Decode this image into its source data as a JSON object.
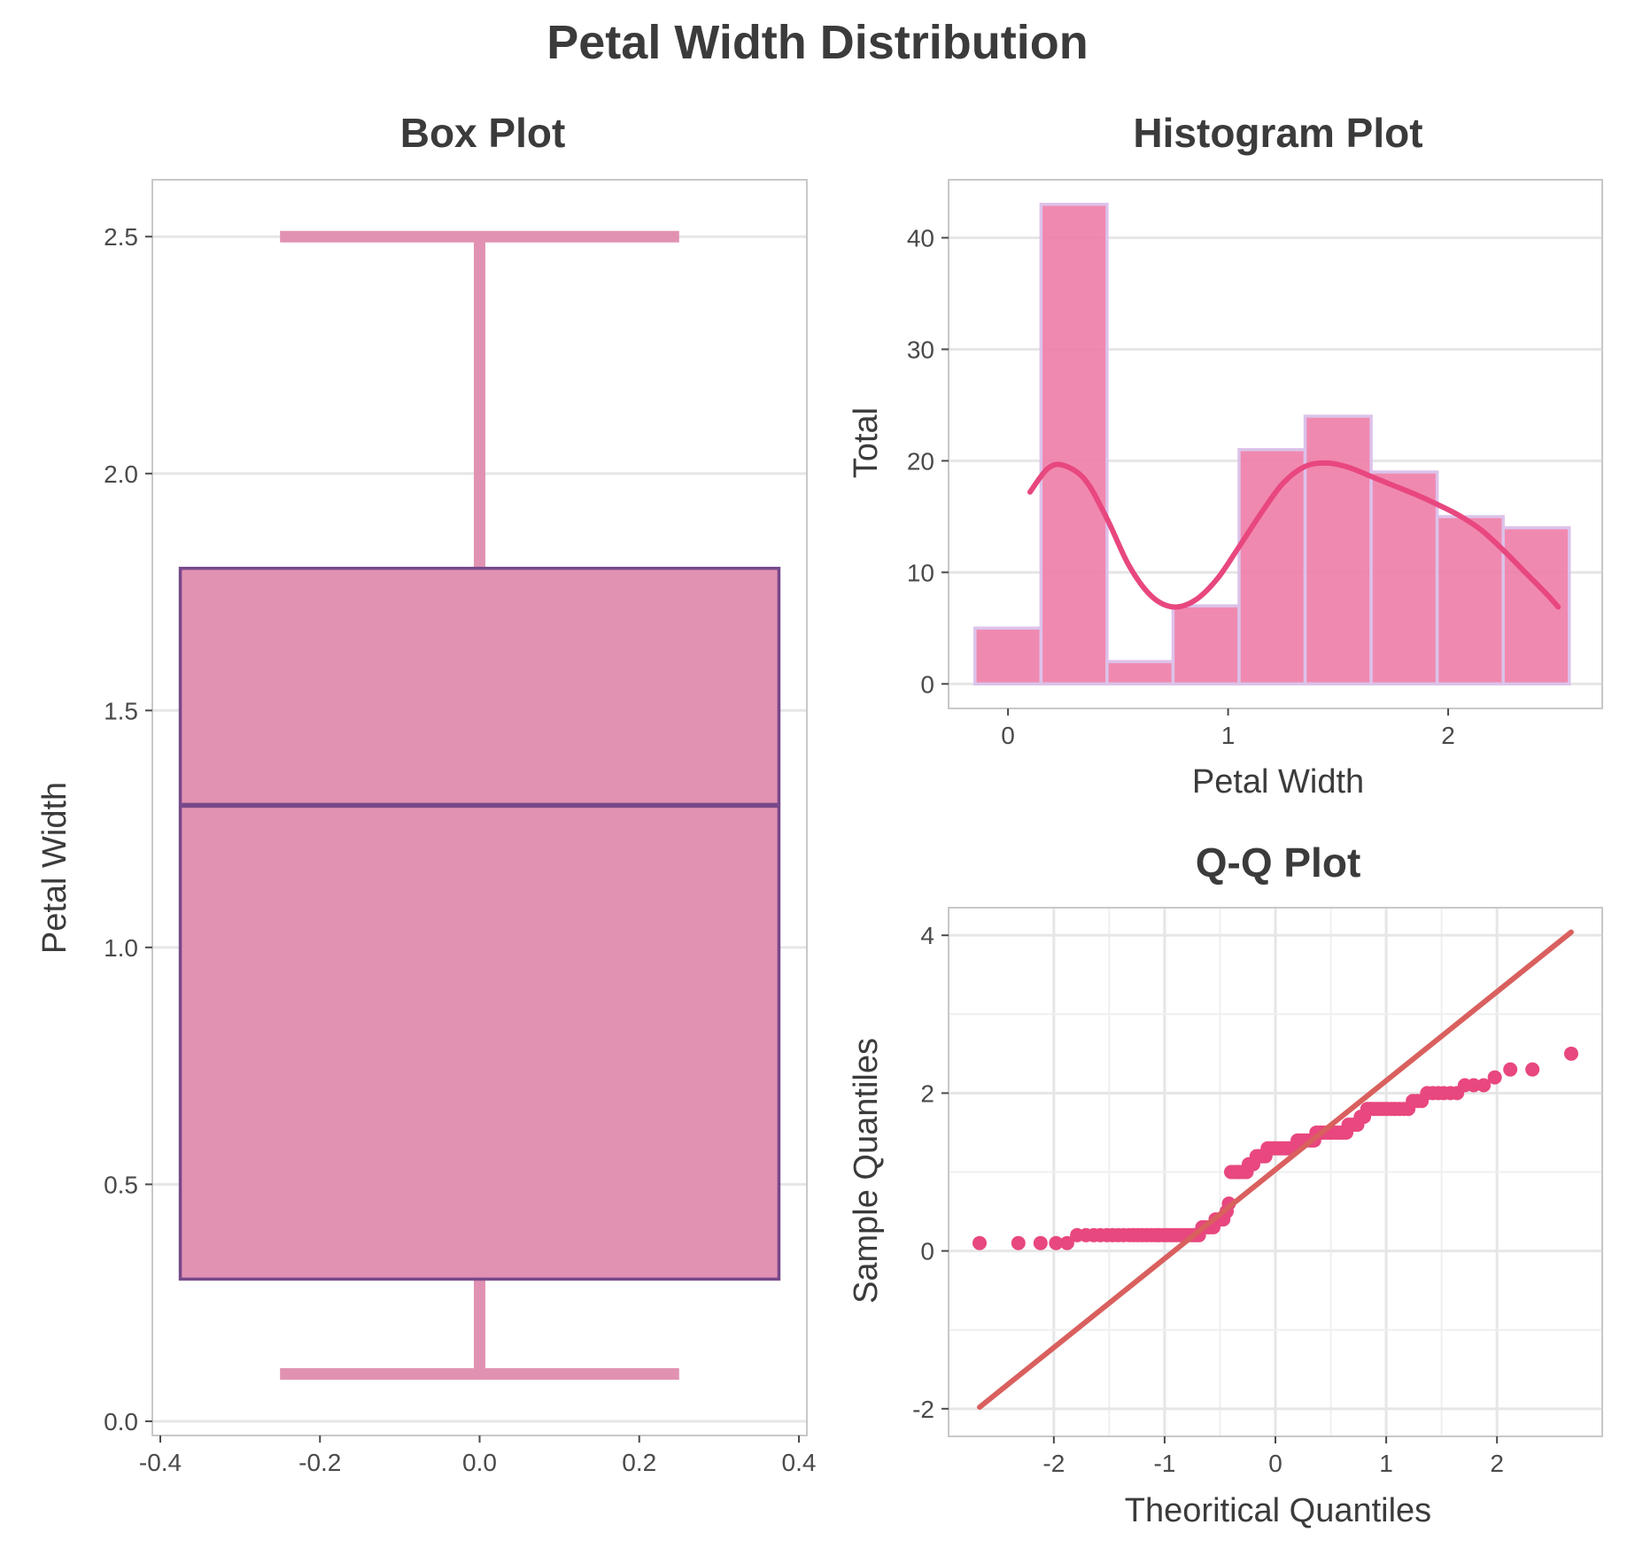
{
  "figure": {
    "title": "Petal Width Distribution"
  },
  "chart_data": [
    {
      "type": "box",
      "title": "Box Plot",
      "xlabel": "",
      "ylabel": "Petal Width",
      "xlim": [
        -0.41,
        0.41
      ],
      "ylim": [
        -0.03,
        2.62
      ],
      "xticks": [
        -0.4,
        -0.2,
        0.0,
        0.2,
        0.4
      ],
      "xtick_labels": [
        "-0.4",
        "-0.2",
        "0.0",
        "0.2",
        "0.4"
      ],
      "yticks": [
        0.0,
        0.5,
        1.0,
        1.5,
        2.0,
        2.5
      ],
      "ytick_labels": [
        "0.0",
        "0.5",
        "1.0",
        "1.5",
        "2.0",
        "2.5"
      ],
      "stats": {
        "min": 0.1,
        "q1": 0.3,
        "median": 1.3,
        "q3": 1.8,
        "max": 2.5
      },
      "box_halfwidth": 0.375,
      "cap_halfwidth": 0.25,
      "fill_color": "#e192b2",
      "edge_color": "#77488a",
      "whisker_color": "#e192b2",
      "grid": true
    },
    {
      "type": "histogram",
      "title": "Histogram Plot",
      "xlabel": "Petal Width",
      "ylabel": "Total",
      "xlim": [
        -0.27,
        2.7
      ],
      "ylim": [
        -2.2,
        45.2
      ],
      "xticks": [
        0,
        1,
        2
      ],
      "xtick_labels": [
        "0",
        "1",
        "2"
      ],
      "yticks": [
        0,
        10,
        20,
        30,
        40
      ],
      "ytick_labels": [
        "0",
        "10",
        "20",
        "30",
        "40"
      ],
      "bins": [
        {
          "x0": -0.15,
          "x1": 0.15,
          "count": 5
        },
        {
          "x0": 0.15,
          "x1": 0.45,
          "count": 43
        },
        {
          "x0": 0.45,
          "x1": 0.75,
          "count": 2
        },
        {
          "x0": 0.75,
          "x1": 1.05,
          "count": 7
        },
        {
          "x0": 1.05,
          "x1": 1.35,
          "count": 21
        },
        {
          "x0": 1.35,
          "x1": 1.65,
          "count": 24
        },
        {
          "x0": 1.65,
          "x1": 1.95,
          "count": 19
        },
        {
          "x0": 1.95,
          "x1": 2.25,
          "count": 15
        },
        {
          "x0": 2.25,
          "x1": 2.55,
          "count": 14
        }
      ],
      "kde": {
        "x": [
          0.1,
          0.18,
          0.25,
          0.35,
          0.45,
          0.55,
          0.65,
          0.75,
          0.85,
          0.95,
          1.05,
          1.15,
          1.25,
          1.35,
          1.45,
          1.55,
          1.65,
          1.75,
          1.85,
          1.95,
          2.05,
          2.15,
          2.25,
          2.35,
          2.45,
          2.5
        ],
        "y": [
          17.2,
          19.3,
          19.6,
          18.3,
          14.8,
          10.6,
          7.9,
          6.9,
          7.5,
          9.4,
          12.3,
          15.3,
          18.0,
          19.5,
          19.8,
          19.4,
          18.6,
          17.8,
          17.0,
          16.1,
          15.1,
          13.8,
          12.0,
          10.0,
          8.0,
          6.9
        ]
      },
      "bar_color": "#ef7fa8",
      "bar_edge_color": "#dcc2ea",
      "kde_color": "#e8477f",
      "grid": true
    },
    {
      "type": "scatter",
      "title": "Q-Q Plot",
      "xlabel": "Theoritical Quantiles",
      "ylabel": "Sample Quantiles",
      "xlim": [
        -2.95,
        2.95
      ],
      "ylim": [
        -2.35,
        4.35
      ],
      "xticks": [
        -2,
        -1,
        0,
        1,
        2
      ],
      "xtick_labels": [
        "-2",
        "-1",
        "0",
        "1",
        "2"
      ],
      "yticks": [
        -2,
        0,
        2,
        4
      ],
      "ytick_labels": [
        "-2",
        "0",
        "2",
        "4"
      ],
      "points": [
        [
          -2.67,
          0.1
        ],
        [
          -2.32,
          0.1
        ],
        [
          -2.12,
          0.1
        ],
        [
          -1.98,
          0.1
        ],
        [
          -1.88,
          0.1
        ],
        [
          -1.79,
          0.2
        ],
        [
          -1.71,
          0.2
        ],
        [
          -1.64,
          0.2
        ],
        [
          -1.58,
          0.2
        ],
        [
          -1.52,
          0.2
        ],
        [
          -1.47,
          0.2
        ],
        [
          -1.42,
          0.2
        ],
        [
          -1.37,
          0.2
        ],
        [
          -1.32,
          0.2
        ],
        [
          -1.28,
          0.2
        ],
        [
          -1.24,
          0.2
        ],
        [
          -1.2,
          0.2
        ],
        [
          -1.16,
          0.2
        ],
        [
          -1.12,
          0.2
        ],
        [
          -1.08,
          0.2
        ],
        [
          -1.05,
          0.2
        ],
        [
          -1.01,
          0.2
        ],
        [
          -0.98,
          0.2
        ],
        [
          -0.95,
          0.2
        ],
        [
          -0.92,
          0.2
        ],
        [
          -0.89,
          0.2
        ],
        [
          -0.86,
          0.2
        ],
        [
          -0.83,
          0.2
        ],
        [
          -0.8,
          0.2
        ],
        [
          -0.77,
          0.2
        ],
        [
          -0.74,
          0.2
        ],
        [
          -0.72,
          0.2
        ],
        [
          -0.69,
          0.2
        ],
        [
          -0.66,
          0.3
        ],
        [
          -0.64,
          0.3
        ],
        [
          -0.61,
          0.3
        ],
        [
          -0.59,
          0.3
        ],
        [
          -0.56,
          0.3
        ],
        [
          -0.54,
          0.4
        ],
        [
          -0.51,
          0.4
        ],
        [
          -0.49,
          0.4
        ],
        [
          -0.47,
          0.4
        ],
        [
          -0.44,
          0.5
        ],
        [
          -0.42,
          0.6
        ],
        [
          -0.4,
          1.0
        ],
        [
          -0.37,
          1.0
        ],
        [
          -0.35,
          1.0
        ],
        [
          -0.33,
          1.0
        ],
        [
          -0.31,
          1.0
        ],
        [
          -0.28,
          1.0
        ],
        [
          -0.26,
          1.0
        ],
        [
          -0.24,
          1.1
        ],
        [
          -0.22,
          1.1
        ],
        [
          -0.2,
          1.1
        ],
        [
          -0.17,
          1.2
        ],
        [
          -0.15,
          1.2
        ],
        [
          -0.13,
          1.2
        ],
        [
          -0.11,
          1.2
        ],
        [
          -0.09,
          1.2
        ],
        [
          -0.07,
          1.3
        ],
        [
          -0.05,
          1.3
        ],
        [
          -0.03,
          1.3
        ],
        [
          -0.01,
          1.3
        ],
        [
          0.01,
          1.3
        ],
        [
          0.03,
          1.3
        ],
        [
          0.05,
          1.3
        ],
        [
          0.07,
          1.3
        ],
        [
          0.09,
          1.3
        ],
        [
          0.11,
          1.3
        ],
        [
          0.13,
          1.3
        ],
        [
          0.15,
          1.3
        ],
        [
          0.17,
          1.3
        ],
        [
          0.2,
          1.4
        ],
        [
          0.22,
          1.4
        ],
        [
          0.24,
          1.4
        ],
        [
          0.26,
          1.4
        ],
        [
          0.28,
          1.4
        ],
        [
          0.31,
          1.4
        ],
        [
          0.33,
          1.4
        ],
        [
          0.35,
          1.4
        ],
        [
          0.37,
          1.5
        ],
        [
          0.4,
          1.5
        ],
        [
          0.42,
          1.5
        ],
        [
          0.44,
          1.5
        ],
        [
          0.47,
          1.5
        ],
        [
          0.49,
          1.5
        ],
        [
          0.51,
          1.5
        ],
        [
          0.54,
          1.5
        ],
        [
          0.56,
          1.5
        ],
        [
          0.59,
          1.5
        ],
        [
          0.61,
          1.5
        ],
        [
          0.64,
          1.5
        ],
        [
          0.66,
          1.6
        ],
        [
          0.69,
          1.6
        ],
        [
          0.72,
          1.6
        ],
        [
          0.74,
          1.6
        ],
        [
          0.77,
          1.7
        ],
        [
          0.8,
          1.7
        ],
        [
          0.83,
          1.8
        ],
        [
          0.86,
          1.8
        ],
        [
          0.89,
          1.8
        ],
        [
          0.92,
          1.8
        ],
        [
          0.95,
          1.8
        ],
        [
          0.98,
          1.8
        ],
        [
          1.01,
          1.8
        ],
        [
          1.05,
          1.8
        ],
        [
          1.08,
          1.8
        ],
        [
          1.12,
          1.8
        ],
        [
          1.16,
          1.8
        ],
        [
          1.2,
          1.8
        ],
        [
          1.24,
          1.9
        ],
        [
          1.28,
          1.9
        ],
        [
          1.32,
          1.9
        ],
        [
          1.37,
          2.0
        ],
        [
          1.42,
          2.0
        ],
        [
          1.47,
          2.0
        ],
        [
          1.52,
          2.0
        ],
        [
          1.58,
          2.0
        ],
        [
          1.64,
          2.0
        ],
        [
          1.71,
          2.1
        ],
        [
          1.79,
          2.1
        ],
        [
          1.88,
          2.1
        ],
        [
          1.98,
          2.2
        ],
        [
          2.12,
          2.3
        ],
        [
          2.32,
          2.3
        ],
        [
          2.67,
          2.5
        ]
      ],
      "reference_line": {
        "x": [
          -2.67,
          2.67
        ],
        "y": [
          -1.98,
          4.04
        ]
      },
      "point_color": "#e8477f",
      "line_color": "#d9605e",
      "grid": true
    }
  ]
}
